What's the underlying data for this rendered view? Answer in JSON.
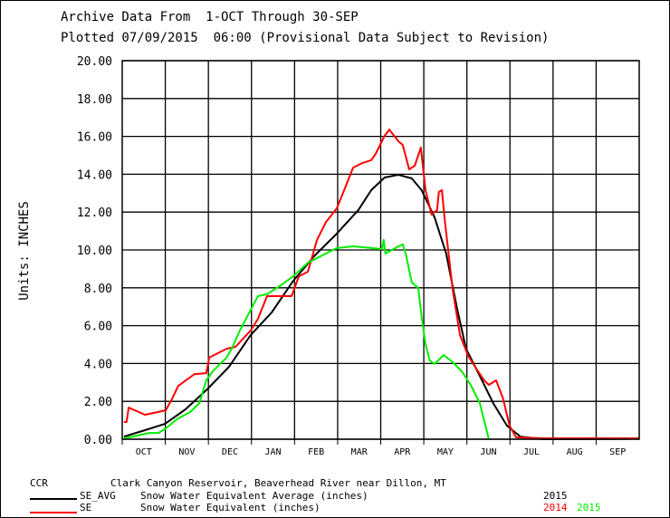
{
  "chart_data": {
    "type": "line",
    "title_line1": "Archive Data From  1-OCT Through 30-SEP",
    "title_line2": "Plotted 07/09/2015  06:00 (Provisional Data Subject to Revision)",
    "ylabel": "Units: INCHES",
    "xlabel": "",
    "ylim": [
      0,
      20
    ],
    "xlim": [
      0,
      12
    ],
    "grid": true,
    "y_ticks": [
      "0.00",
      "2.00",
      "4.00",
      "6.00",
      "8.00",
      "10.00",
      "12.00",
      "14.00",
      "16.00",
      "18.00",
      "20.00"
    ],
    "x_ticks": [
      "OCT",
      "NOV",
      "DEC",
      "JAN",
      "FEB",
      "MAR",
      "APR",
      "MAY",
      "JUN",
      "JUL",
      "AUG",
      "SEP"
    ],
    "x_units": "months since 1-OCT",
    "series": [
      {
        "name": "SE_AVG 2015",
        "color": "#000000",
        "points": [
          [
            0.04,
            0.14
          ],
          [
            0.53,
            0.48
          ],
          [
            0.99,
            0.81
          ],
          [
            1.47,
            1.58
          ],
          [
            1.97,
            2.63
          ],
          [
            2.48,
            3.83
          ],
          [
            2.98,
            5.5
          ],
          [
            3.47,
            6.7
          ],
          [
            3.97,
            8.37
          ],
          [
            4.47,
            9.71
          ],
          [
            4.98,
            10.86
          ],
          [
            5.48,
            12.11
          ],
          [
            5.78,
            13.16
          ],
          [
            6.09,
            13.83
          ],
          [
            6.41,
            13.97
          ],
          [
            6.72,
            13.78
          ],
          [
            6.95,
            13.16
          ],
          [
            7.25,
            11.72
          ],
          [
            7.52,
            9.81
          ],
          [
            7.77,
            6.94
          ],
          [
            7.98,
            4.78
          ],
          [
            8.3,
            3.35
          ],
          [
            8.61,
            1.91
          ],
          [
            8.93,
            0.72
          ],
          [
            9.24,
            0.14
          ],
          [
            9.77,
            0
          ],
          [
            11.7,
            0.02
          ],
          [
            12,
            0.05
          ]
        ]
      },
      {
        "name": "SE 2014",
        "color": "#ff0000",
        "points": [
          [
            0.04,
            0.91
          ],
          [
            0.1,
            0.91
          ],
          [
            0.15,
            1.67
          ],
          [
            0.53,
            1.29
          ],
          [
            0.84,
            1.44
          ],
          [
            1.01,
            1.53
          ],
          [
            1.16,
            2.15
          ],
          [
            1.3,
            2.82
          ],
          [
            1.68,
            3.44
          ],
          [
            1.95,
            3.49
          ],
          [
            2.02,
            4.31
          ],
          [
            2.42,
            4.78
          ],
          [
            2.63,
            4.88
          ],
          [
            2.98,
            5.74
          ],
          [
            3.15,
            6.36
          ],
          [
            3.36,
            7.56
          ],
          [
            3.93,
            7.56
          ],
          [
            4.1,
            8.61
          ],
          [
            4.31,
            8.85
          ],
          [
            4.52,
            10.53
          ],
          [
            4.73,
            11.48
          ],
          [
            4.98,
            12.2
          ],
          [
            5.15,
            13.16
          ],
          [
            5.36,
            14.35
          ],
          [
            5.57,
            14.59
          ],
          [
            5.78,
            14.74
          ],
          [
            5.88,
            15.07
          ],
          [
            6.09,
            16.03
          ],
          [
            6.2,
            16.36
          ],
          [
            6.41,
            15.74
          ],
          [
            6.51,
            15.55
          ],
          [
            6.66,
            14.26
          ],
          [
            6.79,
            14.45
          ],
          [
            6.93,
            15.41
          ],
          [
            7.04,
            13.16
          ],
          [
            7.18,
            11.87
          ],
          [
            7.31,
            12.11
          ],
          [
            7.35,
            13.06
          ],
          [
            7.42,
            13.16
          ],
          [
            7.48,
            11.72
          ],
          [
            7.67,
            7.89
          ],
          [
            7.84,
            5.5
          ],
          [
            8.03,
            4.4
          ],
          [
            8.19,
            3.83
          ],
          [
            8.4,
            3.11
          ],
          [
            8.51,
            2.87
          ],
          [
            8.68,
            3.11
          ],
          [
            8.84,
            2.15
          ],
          [
            8.99,
            0.72
          ],
          [
            9.14,
            0.1
          ],
          [
            9.77,
            0.05
          ],
          [
            12,
            0.05
          ]
        ]
      },
      {
        "name": "SE 2015",
        "color": "#00ee00",
        "points": [
          [
            0.04,
            0.05
          ],
          [
            0.63,
            0.33
          ],
          [
            0.84,
            0.33
          ],
          [
            1.01,
            0.57
          ],
          [
            1.26,
            1.05
          ],
          [
            1.58,
            1.44
          ],
          [
            1.79,
            1.91
          ],
          [
            1.95,
            3.11
          ],
          [
            2.1,
            3.59
          ],
          [
            2.42,
            4.31
          ],
          [
            2.54,
            4.78
          ],
          [
            2.73,
            5.74
          ],
          [
            2.84,
            6.22
          ],
          [
            3.15,
            7.56
          ],
          [
            3.36,
            7.66
          ],
          [
            3.68,
            8.13
          ],
          [
            3.97,
            8.61
          ],
          [
            4.31,
            9.33
          ],
          [
            4.52,
            9.57
          ],
          [
            4.98,
            10.1
          ],
          [
            5.36,
            10.19
          ],
          [
            5.78,
            10.1
          ],
          [
            6.03,
            10.05
          ],
          [
            6.07,
            10.53
          ],
          [
            6.11,
            9.81
          ],
          [
            6.41,
            10.19
          ],
          [
            6.51,
            10.29
          ],
          [
            6.58,
            9.81
          ],
          [
            6.72,
            8.28
          ],
          [
            6.87,
            7.99
          ],
          [
            6.95,
            6.46
          ],
          [
            7.04,
            5.02
          ],
          [
            7.14,
            4.16
          ],
          [
            7.25,
            3.97
          ],
          [
            7.46,
            4.45
          ],
          [
            7.67,
            4.07
          ],
          [
            7.88,
            3.59
          ],
          [
            8.09,
            2.87
          ],
          [
            8.3,
            1.91
          ],
          [
            8.51,
            0
          ]
        ]
      }
    ]
  },
  "legend": {
    "station_code": "CCR",
    "station_name": "Clark Canyon Reservoir, Beaverhead River near Dillon, MT",
    "rows": [
      {
        "code": "SE_AVG",
        "desc": "Snow Water Equivalent Average (inches)",
        "line_color": "#000000",
        "years": [
          {
            "label": "2015",
            "color": "#000000"
          }
        ]
      },
      {
        "code": "SE",
        "desc": "Snow Water Equivalent (inches)",
        "line_color": "#ff0000",
        "years": [
          {
            "label": "2014",
            "color": "#ff0000"
          },
          {
            "label": "2015",
            "color": "#00ee00"
          }
        ]
      }
    ]
  }
}
